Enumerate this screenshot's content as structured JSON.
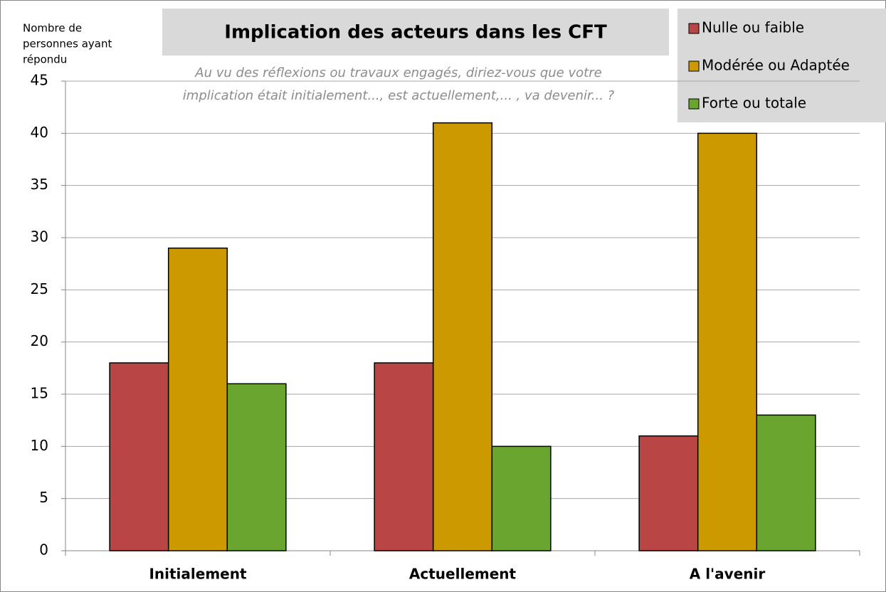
{
  "chart_data": {
    "type": "bar",
    "title": "Implication des acteurs dans les CFT",
    "subtitle": [
      "Au vu des réflexions ou travaux engagés, diriez-vous que votre",
      "implication était initialement..., est actuellement,... , va devenir... ?"
    ],
    "y_label": [
      "Nombre de",
      "personnes ayant",
      "répondu"
    ],
    "categories": [
      "Initialement",
      "Actuellement",
      "A l'avenir"
    ],
    "series": [
      {
        "name": "Nulle ou faible",
        "color": "#b94545",
        "values": [
          18,
          18,
          11
        ]
      },
      {
        "name": "Modérée ou Adaptée",
        "color": "#cc9a00",
        "values": [
          29,
          41,
          40
        ]
      },
      {
        "name": "Forte ou totale",
        "color": "#6aa530",
        "values": [
          16,
          10,
          13
        ]
      }
    ],
    "ylim": [
      0,
      45
    ],
    "yticks": [
      0,
      5,
      10,
      15,
      20,
      25,
      30,
      35,
      40,
      45
    ],
    "grid": true,
    "legend": "top-right"
  }
}
